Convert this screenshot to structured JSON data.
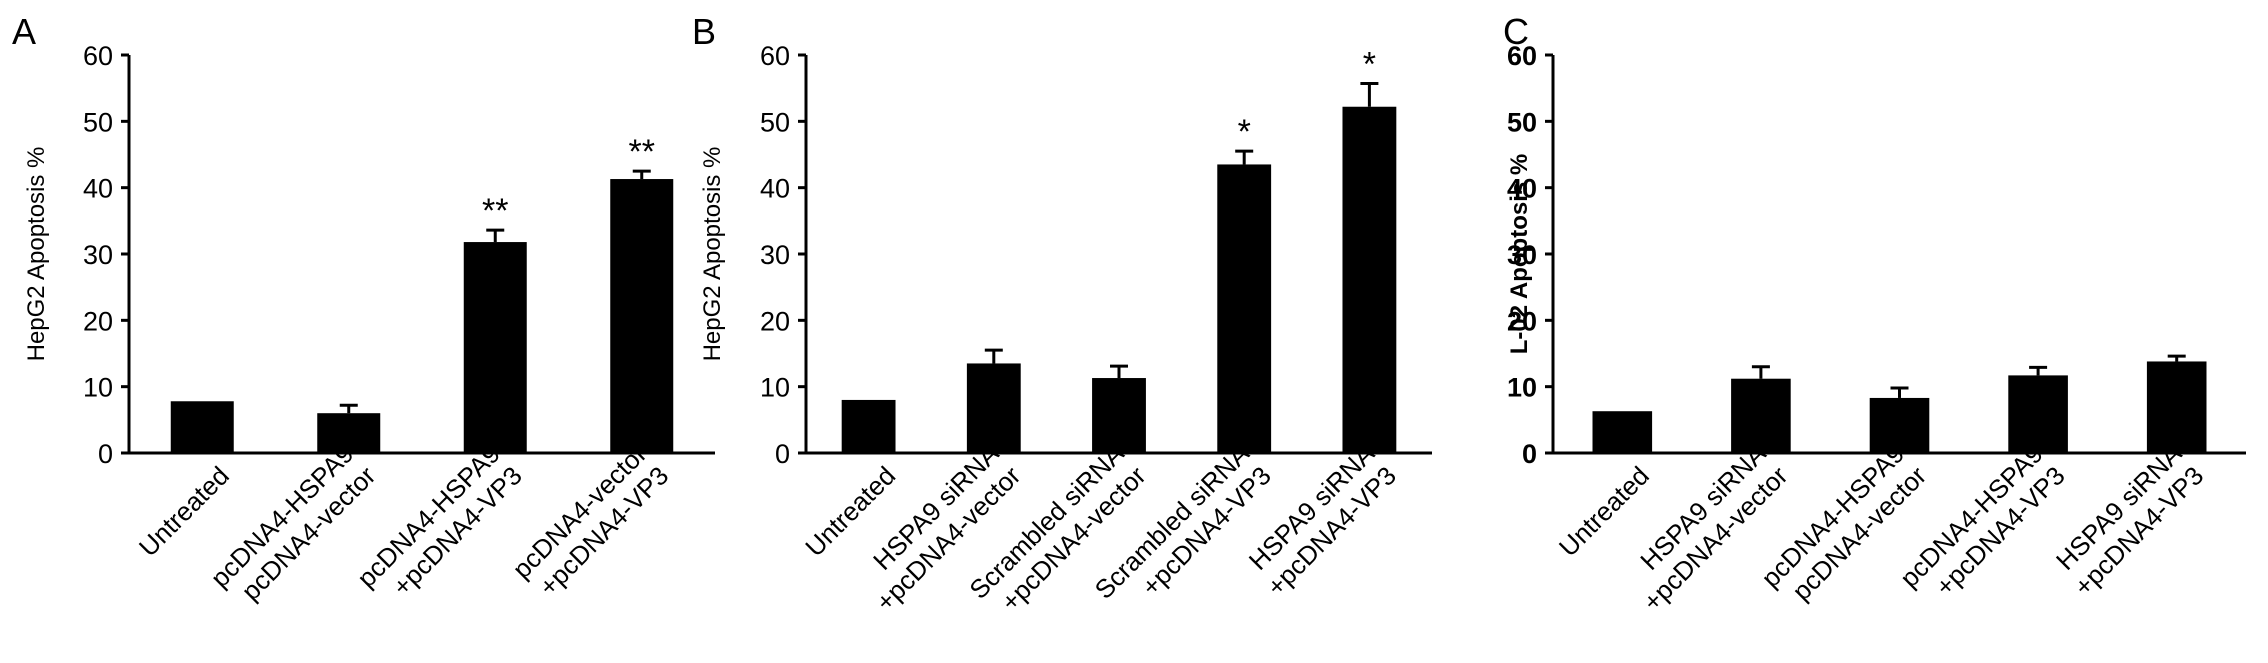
{
  "chart_data": [
    {
      "type": "bar",
      "panel": "A",
      "ylabel": "HepG2 Apoptosis %",
      "ylim": [
        0,
        60
      ],
      "yticks": [
        0,
        10,
        20,
        30,
        40,
        50,
        60
      ],
      "categories": [
        [
          "Untreated"
        ],
        [
          "pcDNA4-HSPA9",
          "pcDNA4-vector"
        ],
        [
          "pcDNA4-HSPA9",
          "+pcDNA4-VP3"
        ],
        [
          "pcDNA4-vector",
          "+pcDNA4-VP3"
        ]
      ],
      "values": [
        7.8,
        6.0,
        31.8,
        41.3
      ],
      "errors": [
        0,
        1.2,
        1.8,
        1.2
      ],
      "significance": [
        "",
        "",
        "**",
        "**"
      ]
    },
    {
      "type": "bar",
      "panel": "B",
      "ylabel": "HepG2 Apoptosis %",
      "ylim": [
        0,
        60
      ],
      "yticks": [
        0,
        10,
        20,
        30,
        40,
        50,
        60
      ],
      "categories": [
        [
          "Untreated"
        ],
        [
          "HSPA9 siRNA",
          "+pcDNA4-vector"
        ],
        [
          "Scrambled siRNA",
          "+pcDNA4-vector"
        ],
        [
          "Scrambled siRNA",
          "+pcDNA4-VP3"
        ],
        [
          "HSPA9 siRNA",
          "+pcDNA4-VP3"
        ]
      ],
      "values": [
        8.0,
        13.5,
        11.3,
        43.5,
        52.2
      ],
      "errors": [
        0,
        2.0,
        1.8,
        2.0,
        3.5
      ],
      "significance": [
        "",
        "",
        "",
        "*",
        "*"
      ]
    },
    {
      "type": "bar",
      "panel": "C",
      "ylabel": "L-02 Apoptosis %",
      "ylim": [
        0,
        60
      ],
      "yticks": [
        0,
        10,
        20,
        30,
        40,
        50,
        60
      ],
      "categories": [
        [
          "Untreated"
        ],
        [
          "HSPA9 siRNA",
          "+pcDNA4-vector"
        ],
        [
          "pcDNA4-HSPA9",
          "pcDNA4-vector"
        ],
        [
          "pcDNA4-HSPA9",
          "+pcDNA4-VP3"
        ],
        [
          "HSPA9 siRNA",
          "+pcDNA4-VP3"
        ]
      ],
      "values": [
        6.3,
        11.2,
        8.3,
        11.7,
        13.8
      ],
      "errors": [
        0,
        1.8,
        1.5,
        1.2,
        0.8
      ],
      "significance": [
        "",
        "",
        "",
        "",
        ""
      ]
    }
  ],
  "colors": {
    "bar": "#000000",
    "axis": "#000000",
    "background": "#ffffff"
  }
}
